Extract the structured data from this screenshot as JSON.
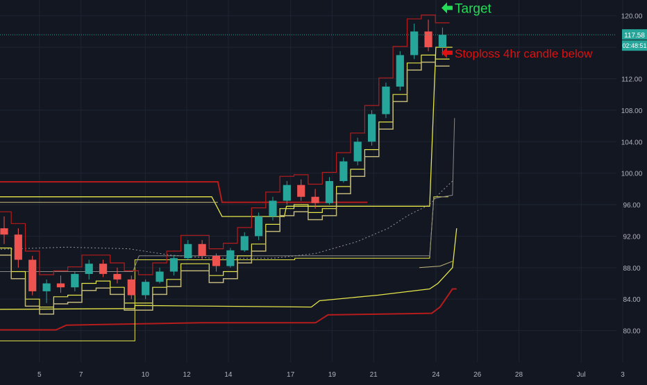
{
  "chart_data": {
    "type": "candlestick",
    "title": "",
    "xlabel": "",
    "ylabel": "",
    "ylim": [
      76,
      122
    ],
    "grid": true,
    "y_ticks": [
      "120.00",
      "116.00",
      "112.00",
      "108.00",
      "104.00",
      "100.00",
      "96.00",
      "92.00",
      "88.00",
      "84.00",
      "80.00"
    ],
    "x_ticks": [
      "5",
      "7",
      "10",
      "12",
      "14",
      "17",
      "19",
      "21",
      "24",
      "26",
      "28",
      "Jul",
      "3"
    ],
    "current_price_label": "117.58",
    "countdown_label": "02:48:51",
    "annotations": [
      {
        "id": "target",
        "text": "Target",
        "color": "#22dd55",
        "arrow": "left",
        "y": 121.0
      },
      {
        "id": "stoploss",
        "text": "Stoploss 4hr candle below",
        "color": "#dd1111",
        "arrow": "left",
        "y": 115.3
      }
    ],
    "colors": {
      "background": "#131722",
      "grid": "#1e2432",
      "up": "#26a69a",
      "down": "#ef5350",
      "dark_red": "#b71c1c",
      "yellow": "#e6e64a",
      "tan": "#c2b77a",
      "gray": "#888888",
      "price_line": "#26a69a",
      "axis_text": "#b2b5be"
    },
    "levels": {
      "resistance_red": [
        {
          "x0": -0.5,
          "x1": 8.8,
          "y": 99.0
        },
        {
          "x0": 8.8,
          "x1": 13.0,
          "y": 96.2
        },
        {
          "x0": 13.0,
          "x1": 17.5,
          "y": 96.2
        }
      ],
      "upper_yellow": [
        {
          "x0": -0.5,
          "x1": 8.8,
          "y": 97.0
        },
        {
          "x0": 8.8,
          "x1": 13.5,
          "y": 94.5
        },
        {
          "x0": 13.5,
          "x1": 17.0,
          "y": 96.0
        }
      ]
    },
    "series": [
      {
        "name": "ohlc",
        "values": [
          [
            93.0,
            94.5,
            91.0,
            92.2
          ],
          [
            92.2,
            93.0,
            88.0,
            89.0
          ],
          [
            89.0,
            89.5,
            84.5,
            85.0
          ],
          [
            85.0,
            86.5,
            83.5,
            86.0
          ],
          [
            86.0,
            87.0,
            84.8,
            85.5
          ],
          [
            85.5,
            87.5,
            85.0,
            87.2
          ],
          [
            87.2,
            89.0,
            86.5,
            88.5
          ],
          [
            88.5,
            89.0,
            86.8,
            87.2
          ],
          [
            87.2,
            88.0,
            86.0,
            86.5
          ],
          [
            86.5,
            87.0,
            84.0,
            84.5
          ],
          [
            84.5,
            86.5,
            84.0,
            86.2
          ],
          [
            86.2,
            88.0,
            86.0,
            87.5
          ],
          [
            87.5,
            89.5,
            87.0,
            89.2
          ],
          [
            89.2,
            91.5,
            89.0,
            91.0
          ],
          [
            91.0,
            91.5,
            89.0,
            89.5
          ],
          [
            89.5,
            89.8,
            87.5,
            88.2
          ],
          [
            88.2,
            90.5,
            88.0,
            90.2
          ],
          [
            90.2,
            92.5,
            90.0,
            92.0
          ],
          [
            92.0,
            95.0,
            91.5,
            94.5
          ],
          [
            94.5,
            97.0,
            94.0,
            96.5
          ],
          [
            96.5,
            99.0,
            96.0,
            98.5
          ],
          [
            98.5,
            99.2,
            96.5,
            97.0
          ],
          [
            97.0,
            98.0,
            95.5,
            96.2
          ],
          [
            96.2,
            99.5,
            96.0,
            99.0
          ],
          [
            99.0,
            102.0,
            98.8,
            101.5
          ],
          [
            101.5,
            104.5,
            101.0,
            104.0
          ],
          [
            104.0,
            108.0,
            103.5,
            107.5
          ],
          [
            107.5,
            111.5,
            107.0,
            111.0
          ],
          [
            111.0,
            115.5,
            110.5,
            115.0
          ],
          [
            115.0,
            119.0,
            114.5,
            118.0
          ],
          [
            118.0,
            119.5,
            115.5,
            116.0
          ],
          [
            116.0,
            118.5,
            115.0,
            117.58
          ]
        ]
      }
    ],
    "xlim": [
      -0.2,
      29.5
    ]
  }
}
